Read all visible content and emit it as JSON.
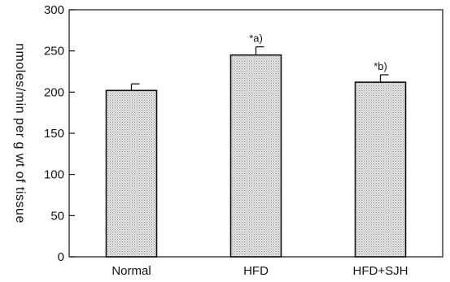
{
  "chart_data": {
    "type": "bar",
    "title": "",
    "xlabel": "",
    "ylabel": "nmoles/min per g wt of tissue",
    "ylim": [
      0,
      300
    ],
    "yticks": [
      0,
      50,
      100,
      150,
      200,
      250,
      300
    ],
    "categories": [
      "Normal",
      "HFD",
      "HFD+SJH"
    ],
    "values": [
      202,
      245,
      212
    ],
    "errors": [
      8,
      10,
      9
    ],
    "annotations": [
      "",
      "*a)",
      "*b)"
    ],
    "grid": false,
    "bar_fill": "#d8d8d8",
    "axis_color": "#111111"
  }
}
